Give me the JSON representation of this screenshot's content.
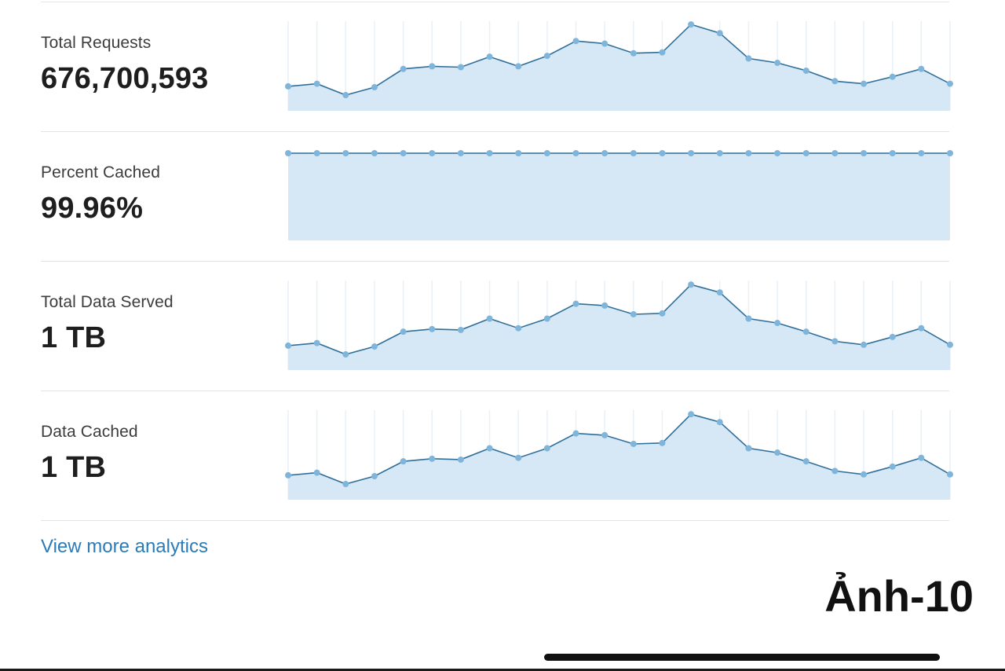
{
  "metrics": [
    {
      "label": "Total Requests",
      "value": "676,700,593"
    },
    {
      "label": "Percent Cached",
      "value": "99.96%"
    },
    {
      "label": "Total Data Served",
      "value": "1 TB"
    },
    {
      "label": "Data Cached",
      "value": "1 TB"
    }
  ],
  "links": {
    "view_more": "View more analytics"
  },
  "caption": "Ảnh-10",
  "colors": {
    "line": "#2f6f99",
    "point": "#7fb5da",
    "area": "#d6e8f5",
    "gridline": "#e9f1f7",
    "link": "#2b7bb9"
  },
  "chart_data": [
    {
      "type": "area",
      "metric": "Total Requests",
      "x_count": 24,
      "values": [
        28,
        31,
        18,
        27,
        48,
        51,
        50,
        62,
        51,
        63,
        80,
        77,
        66,
        67,
        99,
        89,
        60,
        55,
        46,
        34,
        31,
        39,
        48,
        31
      ],
      "ylim": [
        0,
        100
      ],
      "grid": true
    },
    {
      "type": "area",
      "metric": "Percent Cached",
      "x_count": 24,
      "values": [
        100,
        100,
        100,
        100,
        100,
        100,
        100,
        100,
        100,
        100,
        100,
        100,
        100,
        100,
        100,
        100,
        100,
        100,
        100,
        100,
        100,
        100,
        100,
        100
      ],
      "ylim": [
        0,
        100
      ],
      "grid": false
    },
    {
      "type": "area",
      "metric": "Total Data Served",
      "x_count": 24,
      "values": [
        28,
        31,
        18,
        27,
        44,
        47,
        46,
        59,
        48,
        59,
        76,
        74,
        64,
        65,
        98,
        89,
        59,
        54,
        44,
        33,
        29,
        38,
        48,
        29
      ],
      "ylim": [
        0,
        100
      ],
      "grid": true
    },
    {
      "type": "area",
      "metric": "Data Cached",
      "x_count": 24,
      "values": [
        28,
        31,
        18,
        27,
        44,
        47,
        46,
        59,
        48,
        59,
        76,
        74,
        64,
        65,
        98,
        89,
        59,
        54,
        44,
        33,
        29,
        38,
        48,
        29
      ],
      "ylim": [
        0,
        100
      ],
      "grid": true
    }
  ]
}
